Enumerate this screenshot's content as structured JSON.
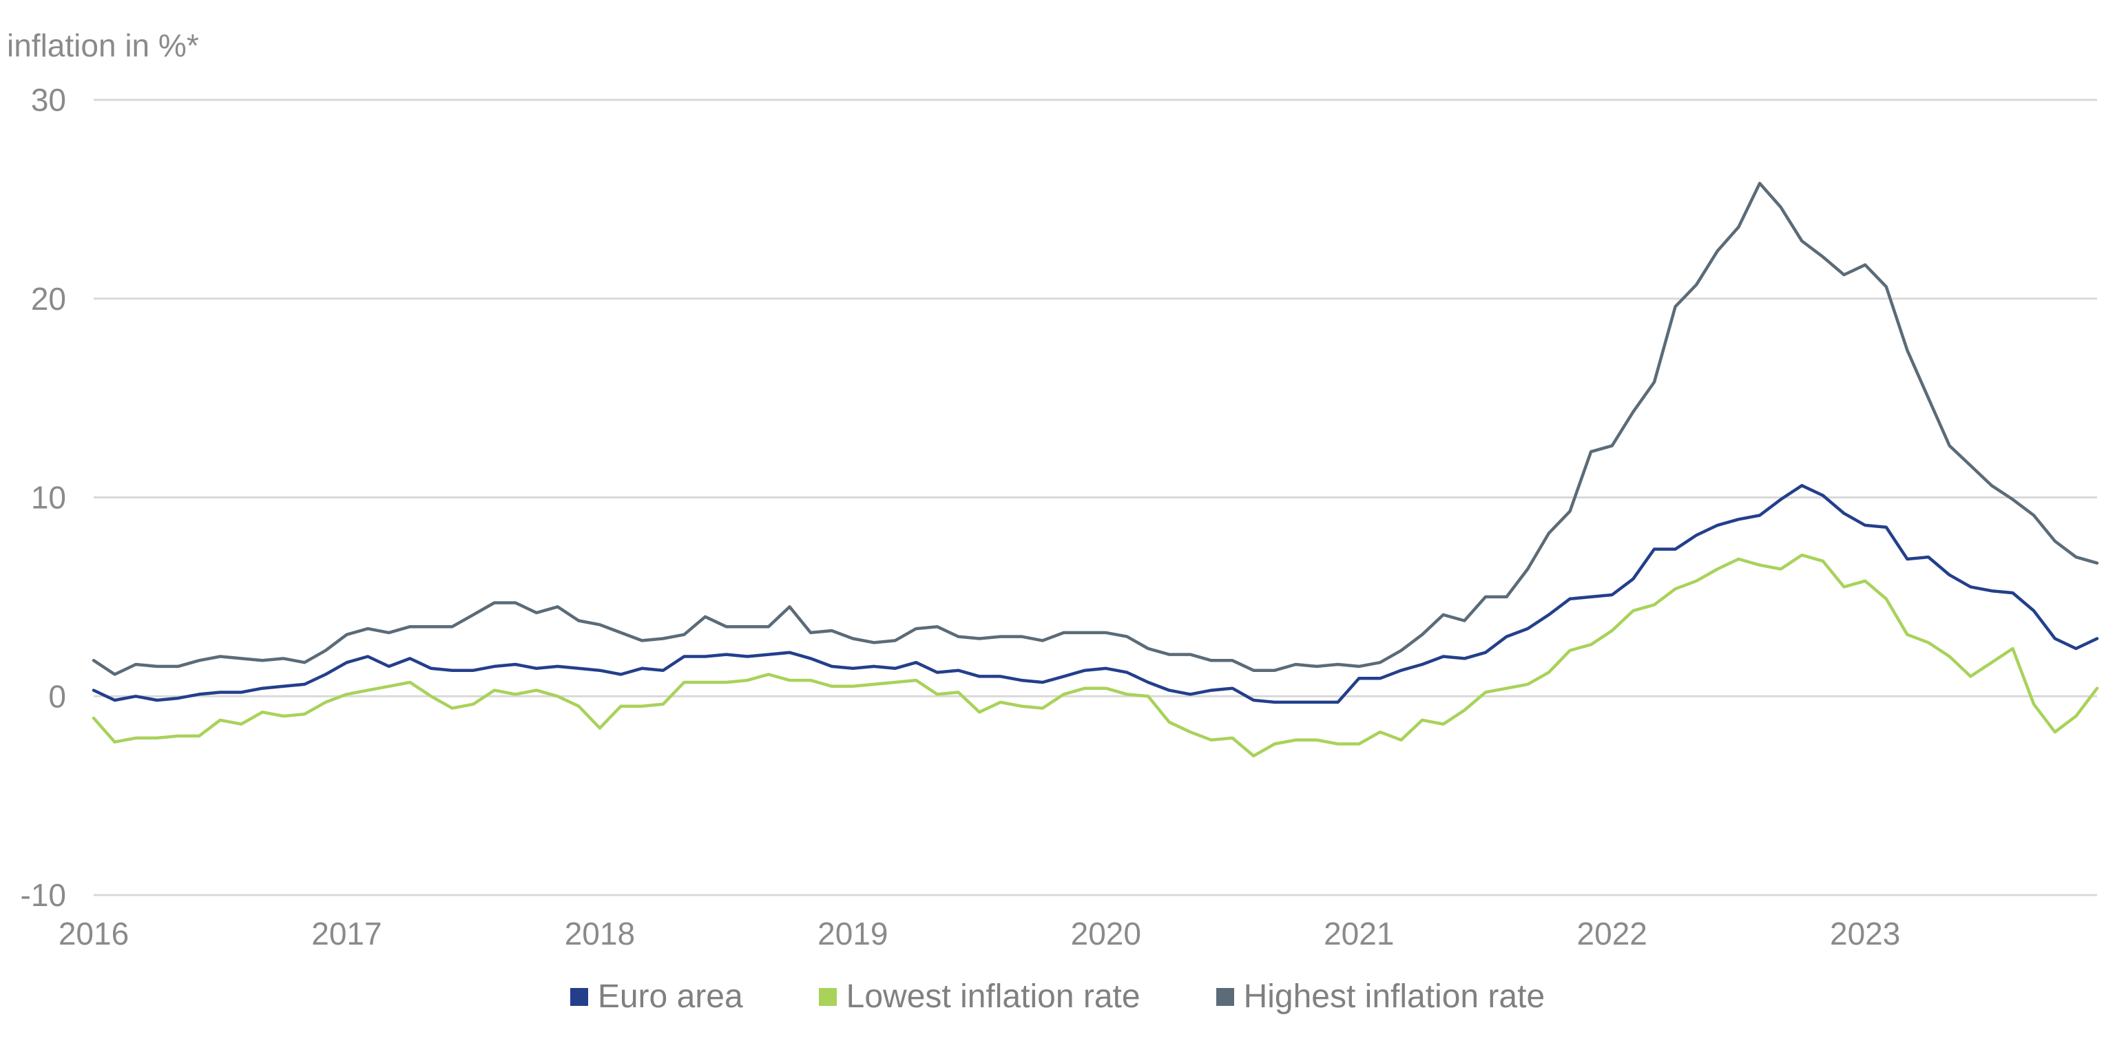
{
  "chart_data": {
    "type": "line",
    "ylabel": "inflation in %*",
    "xlabel": "",
    "ylim": [
      -10,
      30
    ],
    "yticks": [
      -10,
      0,
      10,
      20,
      30
    ],
    "xlim": [
      "2016-01",
      "2023-12"
    ],
    "xticks": [
      "2016",
      "2017",
      "2018",
      "2019",
      "2020",
      "2021",
      "2022",
      "2023"
    ],
    "grid": true,
    "legend": "bottom-center",
    "x": [
      "2016-01",
      "2016-02",
      "2016-03",
      "2016-04",
      "2016-05",
      "2016-06",
      "2016-07",
      "2016-08",
      "2016-09",
      "2016-10",
      "2016-11",
      "2016-12",
      "2017-01",
      "2017-02",
      "2017-03",
      "2017-04",
      "2017-05",
      "2017-06",
      "2017-07",
      "2017-08",
      "2017-09",
      "2017-10",
      "2017-11",
      "2017-12",
      "2018-01",
      "2018-02",
      "2018-03",
      "2018-04",
      "2018-05",
      "2018-06",
      "2018-07",
      "2018-08",
      "2018-09",
      "2018-10",
      "2018-11",
      "2018-12",
      "2019-01",
      "2019-02",
      "2019-03",
      "2019-04",
      "2019-05",
      "2019-06",
      "2019-07",
      "2019-08",
      "2019-09",
      "2019-10",
      "2019-11",
      "2019-12",
      "2020-01",
      "2020-02",
      "2020-03",
      "2020-04",
      "2020-05",
      "2020-06",
      "2020-07",
      "2020-08",
      "2020-09",
      "2020-10",
      "2020-11",
      "2020-12",
      "2021-01",
      "2021-02",
      "2021-03",
      "2021-04",
      "2021-05",
      "2021-06",
      "2021-07",
      "2021-08",
      "2021-09",
      "2021-10",
      "2021-11",
      "2021-12",
      "2022-01",
      "2022-02",
      "2022-03",
      "2022-04",
      "2022-05",
      "2022-06",
      "2022-07",
      "2022-08",
      "2022-09",
      "2022-10",
      "2022-11",
      "2022-12",
      "2023-01",
      "2023-02",
      "2023-03",
      "2023-04",
      "2023-05",
      "2023-06",
      "2023-07",
      "2023-08",
      "2023-09",
      "2023-10",
      "2023-11",
      "2023-12"
    ],
    "series": [
      {
        "name": "Euro area",
        "color": "#233f8c",
        "values": [
          0.3,
          -0.2,
          0.0,
          -0.2,
          -0.1,
          0.1,
          0.2,
          0.2,
          0.4,
          0.5,
          0.6,
          1.1,
          1.7,
          2.0,
          1.5,
          1.9,
          1.4,
          1.3,
          1.3,
          1.5,
          1.6,
          1.4,
          1.5,
          1.4,
          1.3,
          1.1,
          1.4,
          1.3,
          2.0,
          2.0,
          2.1,
          2.0,
          2.1,
          2.2,
          1.9,
          1.5,
          1.4,
          1.5,
          1.4,
          1.7,
          1.2,
          1.3,
          1.0,
          1.0,
          0.8,
          0.7,
          1.0,
          1.3,
          1.4,
          1.2,
          0.7,
          0.3,
          0.1,
          0.3,
          0.4,
          -0.2,
          -0.3,
          -0.3,
          -0.3,
          -0.3,
          0.9,
          0.9,
          1.3,
          1.6,
          2.0,
          1.9,
          2.2,
          3.0,
          3.4,
          4.1,
          4.9,
          5.0,
          5.1,
          5.9,
          7.4,
          7.4,
          8.1,
          8.6,
          8.9,
          9.1,
          9.9,
          10.6,
          10.1,
          9.2,
          8.6,
          8.5,
          6.9,
          7.0,
          6.1,
          5.5,
          5.3,
          5.2,
          4.3,
          2.9,
          2.4,
          2.9
        ]
      },
      {
        "name": "Lowest inflation rate",
        "color": "#a8d25a",
        "values": [
          -1.1,
          -2.3,
          -2.1,
          -2.1,
          -2.0,
          -2.0,
          -1.2,
          -1.4,
          -0.8,
          -1.0,
          -0.9,
          -0.3,
          0.1,
          0.3,
          0.5,
          0.7,
          0.0,
          -0.6,
          -0.4,
          0.3,
          0.1,
          0.3,
          0.0,
          -0.5,
          -1.6,
          -0.5,
          -0.5,
          -0.4,
          0.7,
          0.7,
          0.7,
          0.8,
          1.1,
          0.8,
          0.8,
          0.5,
          0.5,
          0.6,
          0.7,
          0.8,
          0.1,
          0.2,
          -0.8,
          -0.3,
          -0.5,
          -0.6,
          0.1,
          0.4,
          0.4,
          0.1,
          0.0,
          -1.3,
          -1.8,
          -2.2,
          -2.1,
          -3.0,
          -2.4,
          -2.2,
          -2.2,
          -2.4,
          -2.4,
          -1.8,
          -2.2,
          -1.2,
          -1.4,
          -0.7,
          0.2,
          0.4,
          0.6,
          1.2,
          2.3,
          2.6,
          3.3,
          4.3,
          4.6,
          5.4,
          5.8,
          6.4,
          6.9,
          6.6,
          6.4,
          7.1,
          6.8,
          5.5,
          5.8,
          4.9,
          3.1,
          2.7,
          2.0,
          1.0,
          1.7,
          2.4,
          -0.4,
          -1.8,
          -1.0,
          0.4
        ]
      },
      {
        "name": "Highest inflation rate",
        "color": "#5b6b78",
        "values": [
          1.8,
          1.1,
          1.6,
          1.5,
          1.5,
          1.8,
          2.0,
          1.9,
          1.8,
          1.9,
          1.7,
          2.3,
          3.1,
          3.4,
          3.2,
          3.5,
          3.5,
          3.5,
          4.1,
          4.7,
          4.7,
          4.2,
          4.5,
          3.8,
          3.6,
          3.2,
          2.8,
          2.9,
          3.1,
          4.0,
          3.5,
          3.5,
          3.5,
          4.5,
          3.2,
          3.3,
          2.9,
          2.7,
          2.8,
          3.4,
          3.5,
          3.0,
          2.9,
          3.0,
          3.0,
          2.8,
          3.2,
          3.2,
          3.2,
          3.0,
          2.4,
          2.1,
          2.1,
          1.8,
          1.8,
          1.3,
          1.3,
          1.6,
          1.5,
          1.6,
          1.5,
          1.7,
          2.3,
          3.1,
          4.1,
          3.8,
          5.0,
          5.0,
          6.4,
          8.2,
          9.3,
          12.3,
          12.6,
          14.3,
          15.8,
          19.6,
          20.7,
          22.4,
          23.6,
          25.8,
          24.6,
          22.9,
          22.1,
          21.2,
          21.7,
          20.6,
          17.4,
          15.0,
          12.6,
          11.6,
          10.6,
          9.9,
          9.1,
          7.8,
          7.0,
          6.7
        ]
      }
    ]
  }
}
